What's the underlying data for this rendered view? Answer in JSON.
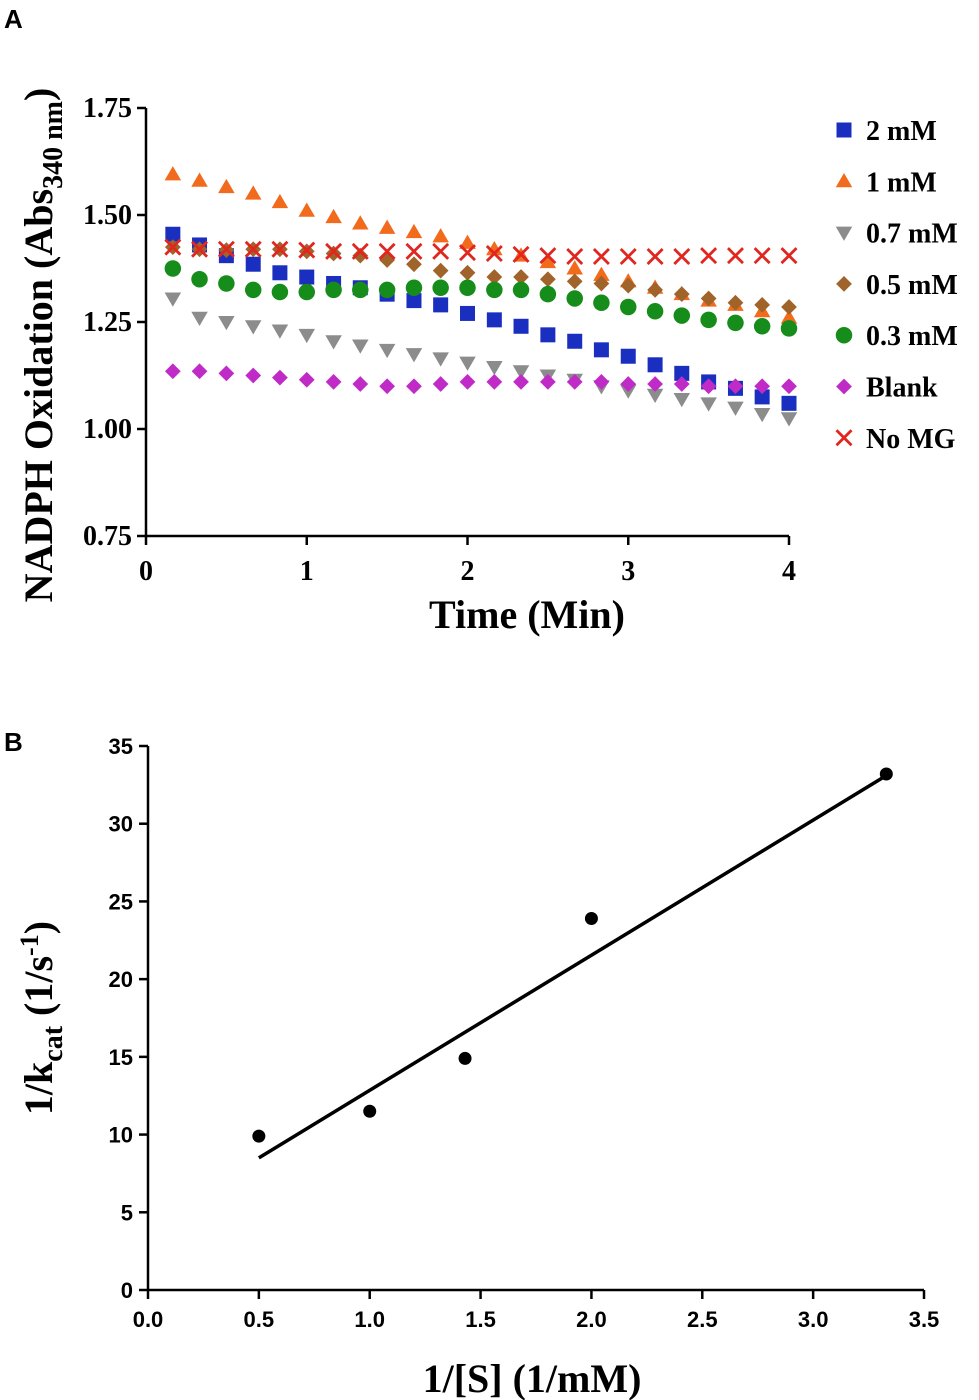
{
  "chart_data": [
    {
      "panel": "A",
      "type": "scatter",
      "title": "",
      "xlabel": "Time (Min)",
      "ylabel_main": "NADPH Oxidation (Abs",
      "ylabel_sub": "340 nm",
      "ylabel_close": ")",
      "xlim": [
        0,
        4
      ],
      "ylim": [
        0.75,
        1.75
      ],
      "xticks": [
        0,
        1,
        2,
        3,
        4
      ],
      "xtick_labels": [
        "0",
        "1",
        "2",
        "3",
        "4"
      ],
      "yticks": [
        0.75,
        1.0,
        1.25,
        1.5,
        1.75
      ],
      "ytick_labels": [
        "0.75",
        "1.00",
        "1.25",
        "1.50",
        "1.75"
      ],
      "legend_position": "right",
      "x": [
        0.167,
        0.333,
        0.5,
        0.667,
        0.833,
        1.0,
        1.167,
        1.333,
        1.5,
        1.667,
        1.833,
        2.0,
        2.167,
        2.333,
        2.5,
        2.667,
        2.833,
        3.0,
        3.167,
        3.333,
        3.5,
        3.667,
        3.833,
        4.0
      ],
      "series": [
        {
          "name": "2 mM",
          "marker": "square",
          "color": "#1a2fbf",
          "values": [
            1.455,
            1.43,
            1.405,
            1.385,
            1.365,
            1.355,
            1.34,
            1.33,
            1.315,
            1.3,
            1.29,
            1.27,
            1.255,
            1.24,
            1.22,
            1.205,
            1.185,
            1.17,
            1.15,
            1.13,
            1.11,
            1.095,
            1.075,
            1.06
          ]
        },
        {
          "name": "1 mM",
          "marker": "triangle-up",
          "color": "#f26a1b",
          "values": [
            1.595,
            1.58,
            1.565,
            1.55,
            1.53,
            1.51,
            1.495,
            1.48,
            1.47,
            1.46,
            1.45,
            1.435,
            1.42,
            1.405,
            1.39,
            1.375,
            1.36,
            1.345,
            1.33,
            1.315,
            1.3,
            1.29,
            1.275,
            1.26
          ]
        },
        {
          "name": "0.7 mM",
          "marker": "triangle-down",
          "color": "#8c8c8c",
          "values": [
            1.305,
            1.26,
            1.25,
            1.24,
            1.23,
            1.22,
            1.205,
            1.195,
            1.185,
            1.175,
            1.165,
            1.155,
            1.145,
            1.135,
            1.125,
            1.115,
            1.1,
            1.09,
            1.08,
            1.07,
            1.06,
            1.05,
            1.035,
            1.025
          ]
        },
        {
          "name": "0.5 mM",
          "marker": "diamond",
          "color": "#a0632a",
          "values": [
            1.425,
            1.42,
            1.418,
            1.42,
            1.42,
            1.415,
            1.41,
            1.405,
            1.395,
            1.385,
            1.37,
            1.365,
            1.355,
            1.355,
            1.35,
            1.345,
            1.34,
            1.335,
            1.325,
            1.315,
            1.305,
            1.295,
            1.29,
            1.285
          ]
        },
        {
          "name": "0.3 mM",
          "marker": "circle",
          "color": "#168c1a",
          "values": [
            1.375,
            1.35,
            1.34,
            1.325,
            1.32,
            1.32,
            1.325,
            1.325,
            1.325,
            1.33,
            1.33,
            1.33,
            1.325,
            1.325,
            1.315,
            1.305,
            1.295,
            1.285,
            1.275,
            1.265,
            1.255,
            1.248,
            1.24,
            1.235
          ]
        },
        {
          "name": "Blank",
          "marker": "diamond",
          "color": "#c02bc8",
          "values": [
            1.135,
            1.135,
            1.13,
            1.125,
            1.12,
            1.115,
            1.11,
            1.105,
            1.1,
            1.1,
            1.105,
            1.11,
            1.11,
            1.11,
            1.11,
            1.11,
            1.11,
            1.105,
            1.105,
            1.105,
            1.1,
            1.1,
            1.1,
            1.1
          ]
        },
        {
          "name": "No MG",
          "marker": "x",
          "color": "#e0261f",
          "values": [
            1.425,
            1.42,
            1.42,
            1.42,
            1.42,
            1.418,
            1.415,
            1.415,
            1.415,
            1.415,
            1.415,
            1.412,
            1.41,
            1.408,
            1.405,
            1.403,
            1.403,
            1.403,
            1.403,
            1.403,
            1.405,
            1.405,
            1.405,
            1.405
          ]
        }
      ]
    },
    {
      "panel": "B",
      "type": "scatter",
      "title": "",
      "xlabel": "1/[S] (1/mM)",
      "ylabel_main": "1/k",
      "ylabel_sub": "cat",
      "ylabel_tail": " (1/s",
      "ylabel_sup": "-1",
      "ylabel_close": ")",
      "xlim": [
        0,
        3.5
      ],
      "ylim": [
        0,
        35
      ],
      "xticks": [
        0,
        0.5,
        1,
        1.5,
        2,
        2.5,
        3,
        3.5
      ],
      "xtick_labels": [
        "0.0",
        "0.5",
        "1.0",
        "1.5",
        "2.0",
        "2.5",
        "3.0",
        "3.5"
      ],
      "yticks": [
        0,
        5,
        10,
        15,
        20,
        25,
        30,
        35
      ],
      "ytick_labels": [
        "0",
        "5",
        "10",
        "15",
        "20",
        "25",
        "30",
        "35"
      ],
      "points": {
        "x": [
          0.5,
          1.0,
          1.43,
          2.0,
          3.33
        ],
        "y": [
          9.9,
          11.5,
          14.9,
          23.9,
          33.2
        ],
        "color": "#000000"
      },
      "fit_line": {
        "x": [
          0.5,
          3.33
        ],
        "y": [
          8.5,
          33.1
        ],
        "color": "#000000"
      }
    }
  ]
}
